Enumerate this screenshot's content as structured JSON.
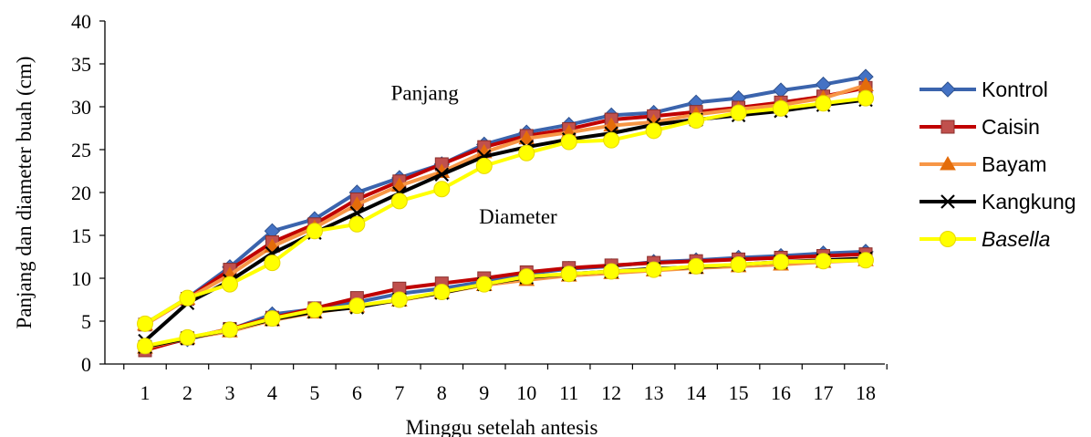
{
  "chart_data": {
    "type": "line",
    "ylabel": "Panjang  dan diameter buah (cm)",
    "xlabel": "Minggu setelah antesis",
    "x": [
      1,
      2,
      3,
      4,
      5,
      6,
      7,
      8,
      9,
      10,
      11,
      12,
      13,
      14,
      15,
      16,
      17,
      18
    ],
    "ylim": [
      0,
      40
    ],
    "yticks": [
      "0",
      "5",
      "10",
      "15",
      "20",
      "25",
      "30",
      "35",
      "40"
    ],
    "xticks": [
      "1",
      "2",
      "3",
      "4",
      "5",
      "6",
      "7",
      "8",
      "9",
      "10",
      "11",
      "12",
      "13",
      "14",
      "15",
      "16",
      "17",
      "18"
    ],
    "grid": false,
    "legend_position": "right",
    "annotations": [
      {
        "text": "Panjang",
        "x": 7.6,
        "y": 30.8
      },
      {
        "text": "Diameter",
        "x": 9.8,
        "y": 16.4
      }
    ],
    "series": [
      {
        "name": "Kontrol",
        "group": "Panjang",
        "color": "#4472c4",
        "line_color": "#3b64ad",
        "marker": "diamond",
        "values": [
          4.7,
          7.7,
          11.3,
          15.5,
          16.9,
          20.0,
          21.7,
          23.3,
          25.6,
          27.0,
          27.9,
          29.0,
          29.3,
          30.5,
          31.0,
          31.9,
          32.6,
          33.5
        ]
      },
      {
        "name": "Caisin",
        "group": "Panjang",
        "color": "#c0504d",
        "line_color": "#c00000",
        "marker": "square",
        "values": [
          4.6,
          7.6,
          11.0,
          14.2,
          16.3,
          19.2,
          21.3,
          23.3,
          25.3,
          26.6,
          27.4,
          28.5,
          28.9,
          29.4,
          29.9,
          30.5,
          31.2,
          32.2
        ]
      },
      {
        "name": "Bayam",
        "group": "Panjang",
        "color": "#e46c0a",
        "line_color": "#f79646",
        "marker": "triangle",
        "values": [
          4.6,
          7.6,
          10.4,
          13.7,
          15.9,
          18.6,
          20.8,
          22.4,
          24.7,
          26.3,
          27.0,
          27.8,
          28.2,
          29.1,
          29.7,
          30.2,
          31.0,
          32.5
        ]
      },
      {
        "name": "Kangkung",
        "group": "Panjang",
        "color": "#000000",
        "line_color": "#000000",
        "marker": "x",
        "values": [
          2.7,
          7.1,
          9.7,
          12.9,
          15.3,
          17.6,
          19.9,
          22.1,
          24.2,
          25.3,
          26.2,
          26.9,
          27.9,
          28.5,
          29.0,
          29.5,
          30.2,
          30.8
        ]
      },
      {
        "name": "Basella",
        "group": "Panjang",
        "color": "#ffff00",
        "line_color": "#ffff00",
        "marker": "circle",
        "values": [
          4.7,
          7.7,
          9.3,
          11.8,
          15.5,
          16.3,
          19.0,
          20.4,
          23.1,
          24.6,
          25.9,
          26.1,
          27.2,
          28.4,
          29.3,
          29.8,
          30.4,
          31.0
        ]
      },
      {
        "name": "Kontrol",
        "group": "Diameter",
        "color": "#4472c4",
        "line_color": "#3b64ad",
        "marker": "diamond",
        "values": [
          1.8,
          2.9,
          4.0,
          5.8,
          6.4,
          7.2,
          8.2,
          8.8,
          9.6,
          10.5,
          11.1,
          11.4,
          11.9,
          12.1,
          12.4,
          12.6,
          12.9,
          13.1
        ]
      },
      {
        "name": "Caisin",
        "group": "Diameter",
        "color": "#c0504d",
        "line_color": "#c00000",
        "marker": "square",
        "values": [
          1.6,
          3.0,
          4.1,
          5.4,
          6.5,
          7.7,
          8.8,
          9.4,
          10.0,
          10.7,
          11.2,
          11.5,
          11.8,
          12.0,
          12.2,
          12.4,
          12.6,
          12.8
        ]
      },
      {
        "name": "Bayam",
        "group": "Diameter",
        "color": "#e46c0a",
        "line_color": "#f79646",
        "marker": "triangle",
        "values": [
          1.9,
          3.0,
          3.8,
          5.1,
          6.0,
          6.7,
          7.4,
          8.3,
          9.2,
          9.8,
          10.3,
          10.6,
          10.9,
          11.2,
          11.4,
          11.6,
          11.9,
          12.1
        ]
      },
      {
        "name": "Kangkung",
        "group": "Diameter",
        "color": "#000000",
        "line_color": "#000000",
        "marker": "x",
        "values": [
          2.0,
          3.0,
          4.0,
          5.2,
          6.1,
          6.6,
          7.5,
          8.3,
          9.3,
          10.1,
          10.5,
          10.8,
          11.1,
          11.3,
          11.6,
          11.9,
          12.1,
          12.3
        ]
      },
      {
        "name": "Basella",
        "group": "Diameter",
        "color": "#ffff00",
        "line_color": "#ffff00",
        "marker": "circle",
        "values": [
          2.1,
          3.1,
          4.0,
          5.3,
          6.3,
          6.8,
          7.5,
          8.4,
          9.3,
          10.2,
          10.5,
          10.8,
          11.0,
          11.4,
          11.6,
          11.9,
          12.0,
          12.1
        ]
      }
    ],
    "legend": [
      {
        "name": "Kontrol",
        "italic": false
      },
      {
        "name": "Caisin",
        "italic": false
      },
      {
        "name": "Bayam",
        "italic": false
      },
      {
        "name": "Kangkung",
        "italic": false
      },
      {
        "name": "Basella",
        "italic": true
      }
    ]
  }
}
